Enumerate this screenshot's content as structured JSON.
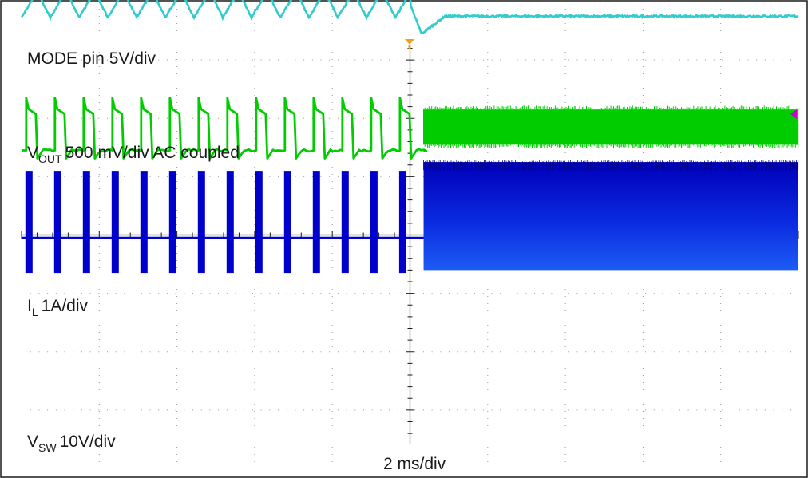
{
  "chart_data": {
    "type": "line",
    "title": "",
    "xlabel": "2 ms/div",
    "ylabel": "",
    "x_unit": "ms",
    "x_per_div": 2,
    "x_divisions": 10,
    "x_range_ms": [
      0,
      20
    ],
    "y_divisions": 8,
    "grid": true,
    "trigger_time_ms": 10,
    "series": [
      {
        "name_main": "MODE pin",
        "name_sub": "",
        "scale": "5V/div",
        "color": "#cc00cc",
        "description_label": "MODE pin 5V/div",
        "points_ms_div": [
          [
            0,
            6.0
          ],
          [
            9.95,
            6.0
          ],
          [
            10.0,
            5.05
          ],
          [
            20,
            5.05
          ]
        ]
      },
      {
        "name_main": "V",
        "name_sub": "OUT",
        "scale": "500 mV/div AC coupled",
        "color": "#33cccc",
        "ripple_period_ms": 0.74,
        "ripple_amplitude_div": 0.22,
        "ripple_center_div": 3.95,
        "settled_level_div": 3.75,
        "dip_time_ms": 10.3,
        "dip_level_div": 3.45
      },
      {
        "name_main": "I",
        "name_sub": "L",
        "scale": "1A/div",
        "color": "#00cc00",
        "burst_period_ms": 0.74,
        "baseline_div": 1.45,
        "peak_div": 2.35,
        "continuous_from_ms": 10.35,
        "continuous_low_div": 1.55,
        "continuous_high_div": 2.15
      },
      {
        "name_main": "V",
        "name_sub": "SW",
        "scale": "10V/div",
        "color": "#0000cc",
        "burst_period_ms": 0.74,
        "baseline_div": -0.05,
        "high_div": 1.1,
        "low_div": -0.65,
        "continuous_from_ms": 10.35,
        "continuous_low_div": -0.6,
        "continuous_high_div": 1.25
      }
    ]
  }
}
